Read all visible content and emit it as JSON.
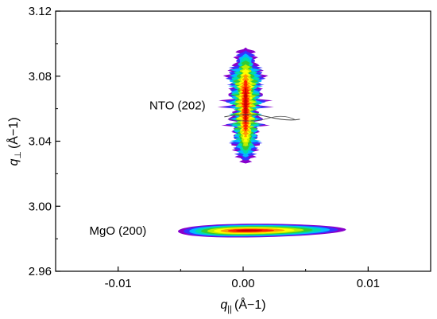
{
  "chart_data": {
    "type": "heatmap",
    "title": "",
    "xlabel": {
      "var": "q",
      "sub": "||",
      "unit": "(Å−1)"
    },
    "ylabel": {
      "var": "q",
      "sub": "⊥",
      "unit": "(Å−1)"
    },
    "xlim": [
      -0.015,
      0.015
    ],
    "ylim": [
      2.96,
      3.12
    ],
    "x_ticks": [
      {
        "value": -0.01,
        "label": "-0.01"
      },
      {
        "value": 0.0,
        "label": "0.00"
      },
      {
        "value": 0.01,
        "label": "0.01"
      }
    ],
    "y_ticks": [
      {
        "value": 2.96,
        "label": "2.96"
      },
      {
        "value": 3.0,
        "label": "3.00"
      },
      {
        "value": 3.04,
        "label": "3.04"
      },
      {
        "value": 3.08,
        "label": "3.08"
      },
      {
        "value": 3.12,
        "label": "3.12"
      }
    ],
    "grid": false,
    "colormap": [
      "#ffffff",
      "#8800cc",
      "#3333ff",
      "#00bbff",
      "#00ddaa",
      "#33cc33",
      "#bbee00",
      "#ffff00",
      "#ff9900",
      "#ff2200",
      "#cc0000"
    ],
    "peaks": [
      {
        "label": "NTO (202)",
        "center": [
          0.0002,
          3.062
        ],
        "width_x": 0.0013,
        "width_y": 0.034,
        "label_position": [
          -0.0075,
          3.062
        ]
      },
      {
        "label": "MgO (200)",
        "center": [
          0.0003,
          2.985
        ],
        "width_x": 0.0042,
        "width_y": 0.0035,
        "tilt": 0.0008,
        "label_position": [
          -0.0123,
          2.985
        ]
      }
    ]
  }
}
